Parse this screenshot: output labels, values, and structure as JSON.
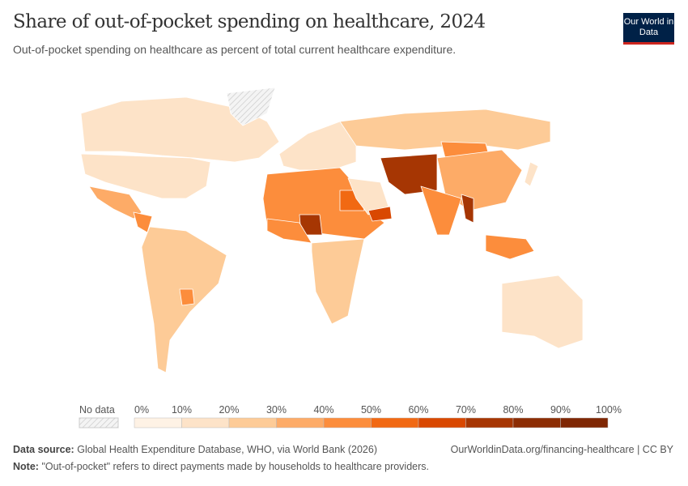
{
  "header": {
    "title": "Share of out-of-pocket spending on healthcare, 2024",
    "subtitle": "Out-of-pocket spending on healthcare as percent of total current healthcare expenditure.",
    "logo": "Our World in Data"
  },
  "chart_data": {
    "type": "choropleth-map",
    "title": "Share of out-of-pocket spending on healthcare, 2024",
    "legend": {
      "no_data_label": "No data",
      "ticks": [
        "0%",
        "10%",
        "20%",
        "30%",
        "40%",
        "50%",
        "60%",
        "70%",
        "80%",
        "90%",
        "100%"
      ],
      "bins": [
        0,
        10,
        20,
        30,
        40,
        50,
        60,
        70,
        80,
        90,
        100
      ],
      "colors": [
        "#fef2e5",
        "#fde3c8",
        "#fdcb97",
        "#fdab67",
        "#fc8d3c",
        "#f16913",
        "#d94801",
        "#a63603",
        "#8c2d04",
        "#7f2704"
      ],
      "placement": "bottom"
    },
    "regions": [
      {
        "name": "Canada",
        "value": 14
      },
      {
        "name": "United States",
        "value": 11
      },
      {
        "name": "Greenland",
        "value": null
      },
      {
        "name": "Mexico",
        "value": 38
      },
      {
        "name": "Central America",
        "value": 45
      },
      {
        "name": "South America",
        "value": 27
      },
      {
        "name": "Paraguay",
        "value": 42
      },
      {
        "name": "Europe",
        "value": 18
      },
      {
        "name": "Russia",
        "value": 28
      },
      {
        "name": "North Africa",
        "value": 45
      },
      {
        "name": "Egypt",
        "value": 55
      },
      {
        "name": "Central & Southern Africa",
        "value": 25
      },
      {
        "name": "Nigeria",
        "value": 75
      },
      {
        "name": "West Africa",
        "value": 45
      },
      {
        "name": "Saudi Arabia",
        "value": 12
      },
      {
        "name": "Yemen",
        "value": 65
      },
      {
        "name": "Iran & Afghanistan",
        "value": 75
      },
      {
        "name": "Mongolia",
        "value": 45
      },
      {
        "name": "China",
        "value": 33
      },
      {
        "name": "India",
        "value": 48
      },
      {
        "name": "Myanmar",
        "value": 72
      },
      {
        "name": "Southeast Asia",
        "value": 42
      },
      {
        "name": "Japan",
        "value": 12
      },
      {
        "name": "Australia",
        "value": 15
      }
    ]
  },
  "footer": {
    "source_label": "Data source:",
    "source": "Global Health Expenditure Database, WHO, via World Bank (2026)",
    "url": "OurWorldinData.org/financing-healthcare | CC BY",
    "note_label": "Note:",
    "note": "\"Out-of-pocket\" refers to direct payments made by households to healthcare providers."
  }
}
